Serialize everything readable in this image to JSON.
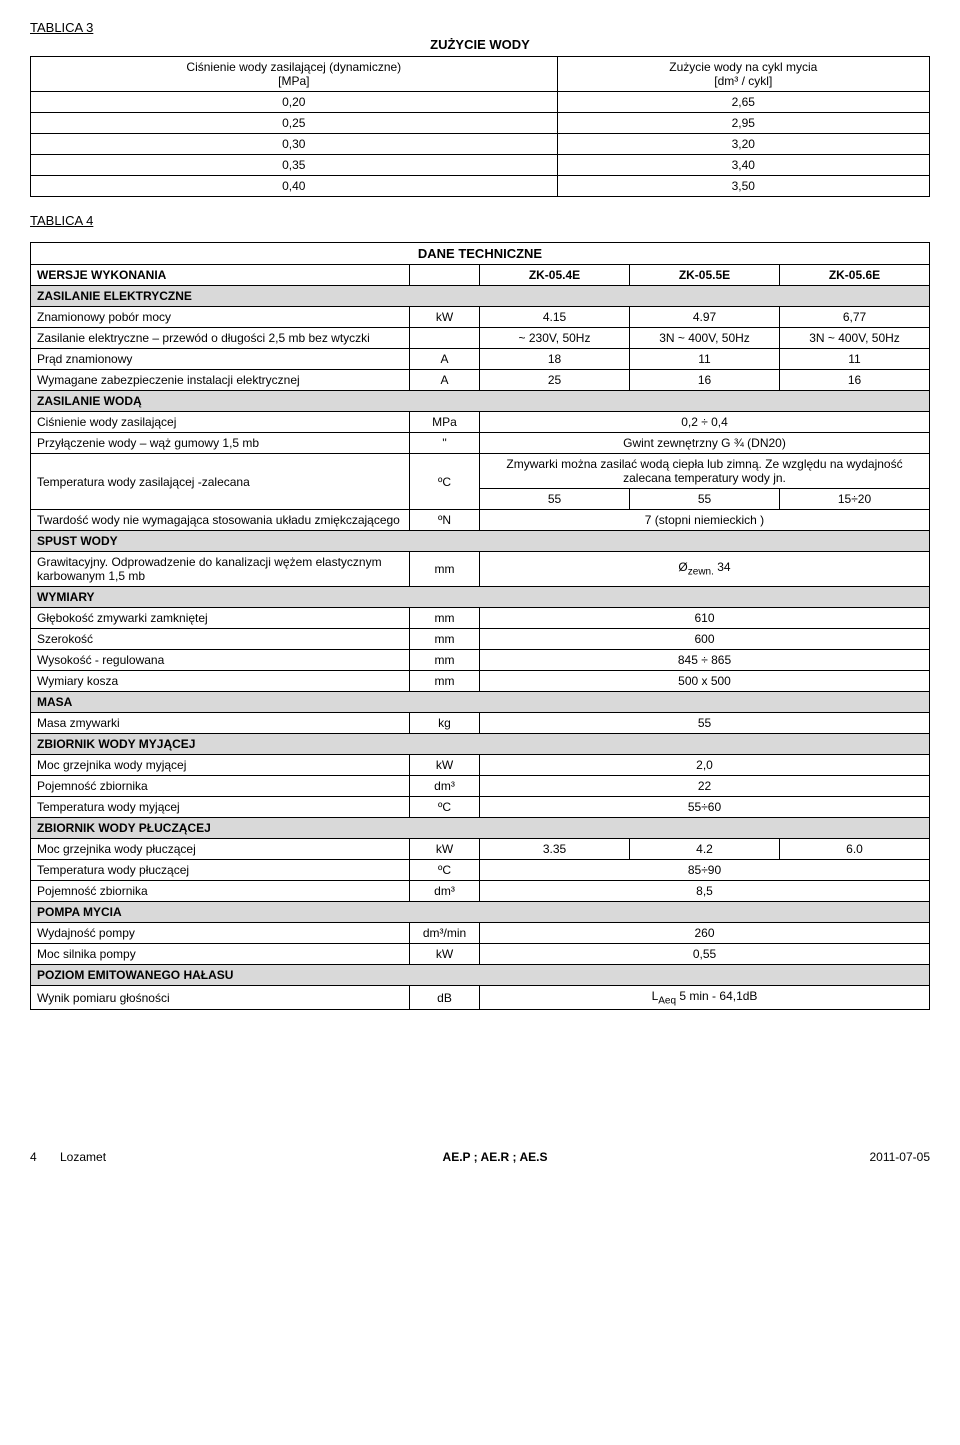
{
  "table3": {
    "label": "TABLICA 3",
    "title": "ZUŻYCIE WODY",
    "col1_header": "Ciśnienie wody zasilającej (dynamiczne)\n[MPa]",
    "col2_header": "Zużycie wody na cykl mycia\n[dm³ / cykl]",
    "rows": [
      [
        "0,20",
        "2,65"
      ],
      [
        "0,25",
        "2,95"
      ],
      [
        "0,30",
        "3,20"
      ],
      [
        "0,35",
        "3,40"
      ],
      [
        "0,40",
        "3,50"
      ]
    ]
  },
  "table4": {
    "label": "TABLICA 4",
    "title": "DANE TECHNICZNE",
    "versions_label": "WERSJE WYKONANIA",
    "versions": [
      "ZK-05.4E",
      "ZK-05.5E",
      "ZK-05.6E"
    ],
    "sections": {
      "s1": "ZASILANIE ELEKTRYCZNE",
      "s2": "ZASILANIE WODĄ",
      "s3": "SPUST WODY",
      "s4": "WYMIARY",
      "s5": "MASA",
      "s6": "ZBIORNIK WODY MYJĄCEJ",
      "s7": "ZBIORNIK WODY PŁUCZĄCEJ",
      "s8": "POMPA MYCIA",
      "s9": "POZIOM EMITOWANEGO HAŁASU"
    },
    "rows": {
      "r1": {
        "label": "Znamionowy pobór mocy",
        "unit": "kW",
        "v": [
          "4.15",
          "4.97",
          "6,77"
        ]
      },
      "r2": {
        "label": "Zasilanie elektryczne – przewód o długości 2,5 mb bez wtyczki",
        "unit": "",
        "v": [
          "~ 230V, 50Hz",
          "3N ~ 400V, 50Hz",
          "3N ~ 400V, 50Hz"
        ]
      },
      "r3": {
        "label": "Prąd znamionowy",
        "unit": "A",
        "v": [
          "18",
          "11",
          "11"
        ]
      },
      "r4": {
        "label": "Wymagane zabezpieczenie instalacji elektrycznej",
        "unit": "A",
        "v": [
          "25",
          "16",
          "16"
        ]
      },
      "r5": {
        "label": "Ciśnienie wody zasilającej",
        "unit": "MPa",
        "val": "0,2 ÷ 0,4"
      },
      "r6": {
        "label": "Przyłączenie wody – wąż gumowy 1,5 mb",
        "unit": "''",
        "val": "Gwint zewnętrzny G ¾ (DN20)"
      },
      "r7": {
        "label": "Temperatura wody zasilającej -zalecana",
        "unit": "ºC",
        "note": "Zmywarki można zasilać wodą ciepła lub zimną. Ze względu na wydajność zalecana temperatury wody jn.",
        "v": [
          "55",
          "55",
          "15÷20"
        ]
      },
      "r8": {
        "label": "Twardość wody nie wymagająca stosowania układu zmiękczającego",
        "unit": "ºN",
        "val": "7 (stopni niemieckich )"
      },
      "r9": {
        "label": "Grawitacyjny. Odprowadzenie do kanalizacji wężem elastycznym karbowanym 1,5 mb",
        "unit": "mm",
        "val": "Øzewn. 34"
      },
      "r10": {
        "label": "Głębokość zmywarki zamkniętej",
        "unit": "mm",
        "val": "610"
      },
      "r11": {
        "label": "Szerokość",
        "unit": "mm",
        "val": "600"
      },
      "r12": {
        "label": "Wysokość  -  regulowana",
        "unit": "mm",
        "val": "845 ÷ 865"
      },
      "r13": {
        "label": "Wymiary kosza",
        "unit": "mm",
        "val": "500 x 500"
      },
      "r14": {
        "label": "Masa zmywarki",
        "unit": "kg",
        "val": "55"
      },
      "r15": {
        "label": "Moc grzejnika wody myjącej",
        "unit": "kW",
        "val": "2,0"
      },
      "r16": {
        "label": "Pojemność zbiornika",
        "unit": "dm³",
        "val": "22"
      },
      "r17": {
        "label": "Temperatura wody myjącej",
        "unit": "ºC",
        "val": "55÷60"
      },
      "r18": {
        "label": "Moc grzejnika wody płuczącej",
        "unit": "kW",
        "v": [
          "3.35",
          "4.2",
          "6.0"
        ]
      },
      "r19": {
        "label": "Temperatura wody płuczącej",
        "unit": "ºC",
        "val": "85÷90"
      },
      "r20": {
        "label": "Pojemność zbiornika",
        "unit": "dm³",
        "val": "8,5"
      },
      "r21": {
        "label": "Wydajność pompy",
        "unit": "dm³/min",
        "val": "260"
      },
      "r22": {
        "label": "Moc silnika pompy",
        "unit": "kW",
        "val": "0,55"
      },
      "r23": {
        "label": "Wynik pomiaru głośności",
        "unit": "dB",
        "val": "LAeq 5 min - 64,1dB"
      }
    }
  },
  "footer": {
    "page": "4",
    "left": "Lozamet",
    "center": "AE.P ; AE.R ; AE.S",
    "right": "2011-07-05"
  }
}
